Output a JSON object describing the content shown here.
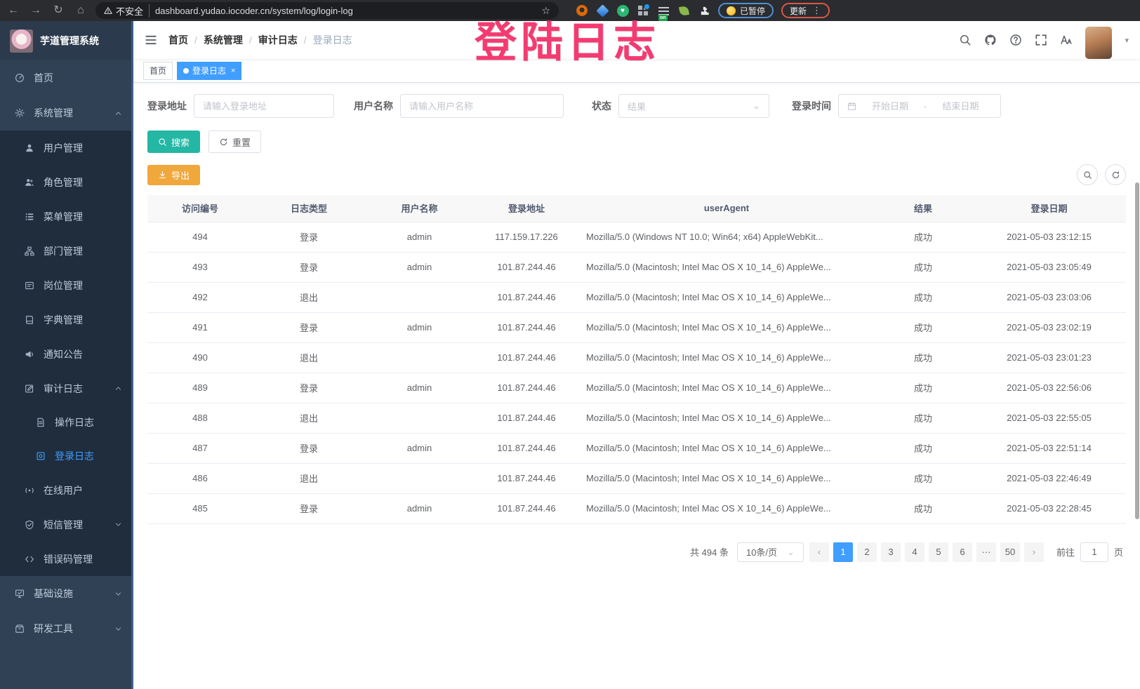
{
  "colors": {
    "accent_blue": "#409EFF",
    "search_teal": "#23b7a4",
    "export_orange": "#f0a73c",
    "sidebar_bg": "#304156",
    "submenu_bg": "#1f2d3d",
    "annotation_pink": "#f43b71"
  },
  "browser": {
    "security_label": "不安全",
    "url": "dashboard.yudao.iocoder.cn/system/log/login-log",
    "on_badge": "on",
    "paused_label": "已暂停",
    "update_label": "更新"
  },
  "annotation": {
    "text": "登陆日志"
  },
  "sidebar": {
    "title": "芋道管理系统",
    "items": [
      {
        "id": "home",
        "label": "首页",
        "icon": "dashboard-icon",
        "level": 1
      },
      {
        "id": "system",
        "label": "系统管理",
        "icon": "gear-icon",
        "level": 1,
        "arrow": "up"
      },
      {
        "id": "user",
        "label": "用户管理",
        "icon": "user-icon",
        "level": 2
      },
      {
        "id": "role",
        "label": "角色管理",
        "icon": "users-icon",
        "level": 2
      },
      {
        "id": "menu",
        "label": "菜单管理",
        "icon": "menu-list-icon",
        "level": 2
      },
      {
        "id": "dept",
        "label": "部门管理",
        "icon": "org-tree-icon",
        "level": 2
      },
      {
        "id": "post",
        "label": "岗位管理",
        "icon": "post-icon",
        "level": 2
      },
      {
        "id": "dict",
        "label": "字典管理",
        "icon": "dict-icon",
        "level": 2
      },
      {
        "id": "notice",
        "label": "通知公告",
        "icon": "announce-icon",
        "level": 2
      },
      {
        "id": "audit-log",
        "label": "审计日志",
        "icon": "audit-icon",
        "level": 2,
        "arrow": "up"
      },
      {
        "id": "operate-log",
        "label": "操作日志",
        "icon": "doc-icon",
        "level": 3
      },
      {
        "id": "login-log",
        "label": "登录日志",
        "icon": "login-log-icon",
        "level": 3,
        "active": true
      },
      {
        "id": "online-user",
        "label": "在线用户",
        "icon": "online-icon",
        "level": 2
      },
      {
        "id": "sms",
        "label": "短信管理",
        "icon": "shield-icon",
        "level": 2,
        "arrow": "down"
      },
      {
        "id": "error-code",
        "label": "错误码管理",
        "icon": "code-icon",
        "level": 2
      },
      {
        "id": "infra",
        "label": "基础设施",
        "icon": "infra-icon",
        "level": 1,
        "arrow": "down"
      },
      {
        "id": "devtool",
        "label": "研发工具",
        "icon": "devtool-icon",
        "level": 1,
        "arrow": "down"
      }
    ]
  },
  "header": {
    "breadcrumb": [
      "首页",
      "系统管理",
      "审计日志",
      "登录日志"
    ]
  },
  "tags": [
    {
      "label": "首页",
      "active": false
    },
    {
      "label": "登录日志",
      "active": true,
      "close": "×"
    }
  ],
  "filters": {
    "address_label": "登录地址",
    "address_placeholder": "请输入登录地址",
    "username_label": "用户名称",
    "username_placeholder": "请输入用户名称",
    "status_label": "状态",
    "status_placeholder": "结果",
    "time_label": "登录时间",
    "start_placeholder": "开始日期",
    "range_separator": "-",
    "end_placeholder": "结束日期",
    "search_label": "搜索",
    "reset_label": "重置"
  },
  "toolbar": {
    "export_label": "导出"
  },
  "table": {
    "columns": [
      "访问编号",
      "日志类型",
      "用户名称",
      "登录地址",
      "userAgent",
      "结果",
      "登录日期"
    ],
    "rows": [
      [
        "494",
        "登录",
        "admin",
        "117.159.17.226",
        "Mozilla/5.0 (Windows NT 10.0; Win64; x64) AppleWebKit...",
        "成功",
        "2021-05-03 23:12:15"
      ],
      [
        "493",
        "登录",
        "admin",
        "101.87.244.46",
        "Mozilla/5.0 (Macintosh; Intel Mac OS X 10_14_6) AppleWe...",
        "成功",
        "2021-05-03 23:05:49"
      ],
      [
        "492",
        "退出",
        "",
        "101.87.244.46",
        "Mozilla/5.0 (Macintosh; Intel Mac OS X 10_14_6) AppleWe...",
        "成功",
        "2021-05-03 23:03:06"
      ],
      [
        "491",
        "登录",
        "admin",
        "101.87.244.46",
        "Mozilla/5.0 (Macintosh; Intel Mac OS X 10_14_6) AppleWe...",
        "成功",
        "2021-05-03 23:02:19"
      ],
      [
        "490",
        "退出",
        "",
        "101.87.244.46",
        "Mozilla/5.0 (Macintosh; Intel Mac OS X 10_14_6) AppleWe...",
        "成功",
        "2021-05-03 23:01:23"
      ],
      [
        "489",
        "登录",
        "admin",
        "101.87.244.46",
        "Mozilla/5.0 (Macintosh; Intel Mac OS X 10_14_6) AppleWe...",
        "成功",
        "2021-05-03 22:56:06"
      ],
      [
        "488",
        "退出",
        "",
        "101.87.244.46",
        "Mozilla/5.0 (Macintosh; Intel Mac OS X 10_14_6) AppleWe...",
        "成功",
        "2021-05-03 22:55:05"
      ],
      [
        "487",
        "登录",
        "admin",
        "101.87.244.46",
        "Mozilla/5.0 (Macintosh; Intel Mac OS X 10_14_6) AppleWe...",
        "成功",
        "2021-05-03 22:51:14"
      ],
      [
        "486",
        "退出",
        "",
        "101.87.244.46",
        "Mozilla/5.0 (Macintosh; Intel Mac OS X 10_14_6) AppleWe...",
        "成功",
        "2021-05-03 22:46:49"
      ],
      [
        "485",
        "登录",
        "admin",
        "101.87.244.46",
        "Mozilla/5.0 (Macintosh; Intel Mac OS X 10_14_6) AppleWe...",
        "成功",
        "2021-05-03 22:28:45"
      ]
    ]
  },
  "pagination": {
    "total": "共 494 条",
    "page_size": "10条/页",
    "prev": "‹",
    "next": "›",
    "pages": [
      "1",
      "2",
      "3",
      "4",
      "5",
      "6",
      "···",
      "50"
    ],
    "active_page": "1",
    "jump_label": "前往",
    "jump_value": "1",
    "unit_label": "页"
  }
}
